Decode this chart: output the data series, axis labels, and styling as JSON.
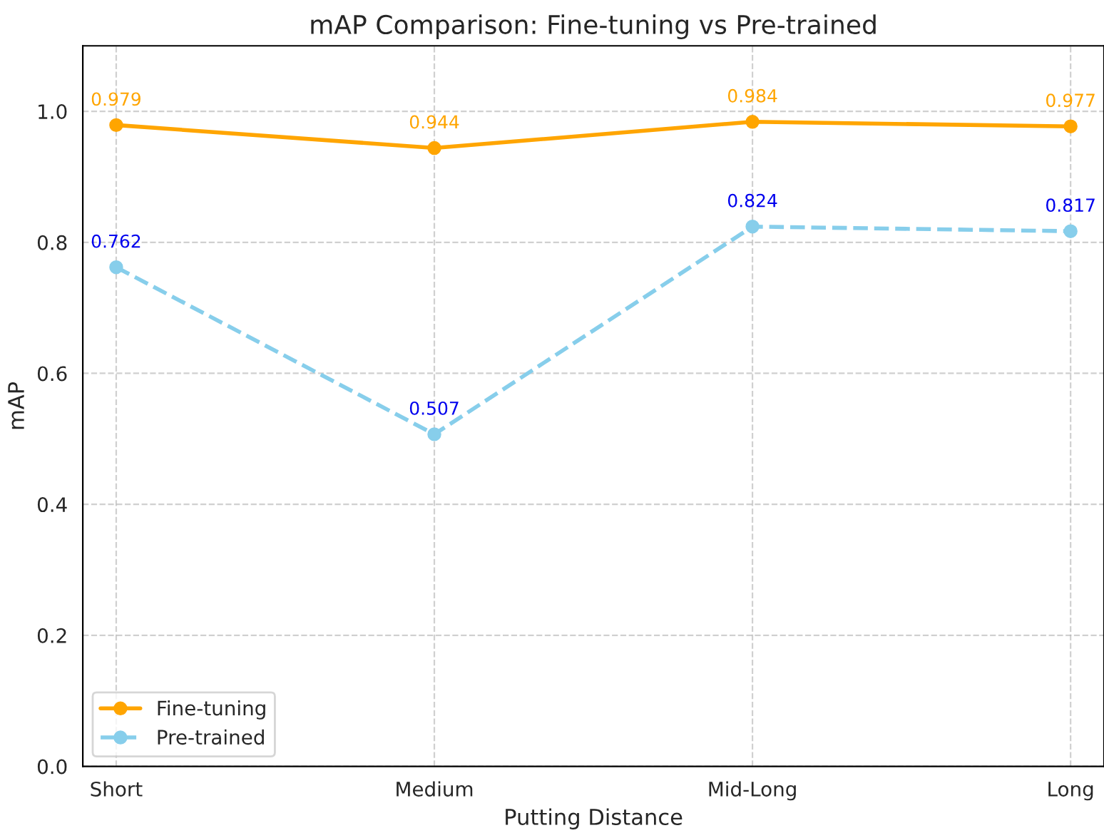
{
  "chart_data": {
    "type": "line",
    "title": "mAP Comparison: Fine-tuning vs Pre-trained",
    "xlabel": "Putting Distance",
    "ylabel": "mAP",
    "categories": [
      "Short",
      "Medium",
      "Mid-Long",
      "Long"
    ],
    "series": [
      {
        "name": "Fine-tuning",
        "color": "#ffa500",
        "values": [
          0.979,
          0.944,
          0.984,
          0.977
        ],
        "marker": "circle",
        "line_style": "solid"
      },
      {
        "name": "Pre-trained",
        "color": "#87ceeb",
        "values": [
          0.762,
          0.507,
          0.824,
          0.817
        ],
        "marker": "circle",
        "line_style": "dashed"
      }
    ],
    "ylim": [
      0,
      1.1
    ],
    "yticks": [
      {
        "value": 0,
        "label": "0.0"
      },
      {
        "value": 0.2,
        "label": "0.2"
      },
      {
        "value": 0.4,
        "label": "0.4"
      },
      {
        "value": 0.6,
        "label": "0.6"
      },
      {
        "value": 0.8,
        "label": "0.8"
      },
      {
        "value": 1.0,
        "label": "1.0"
      }
    ],
    "grid": true,
    "legend": "bottom left",
    "data_labels": true
  }
}
